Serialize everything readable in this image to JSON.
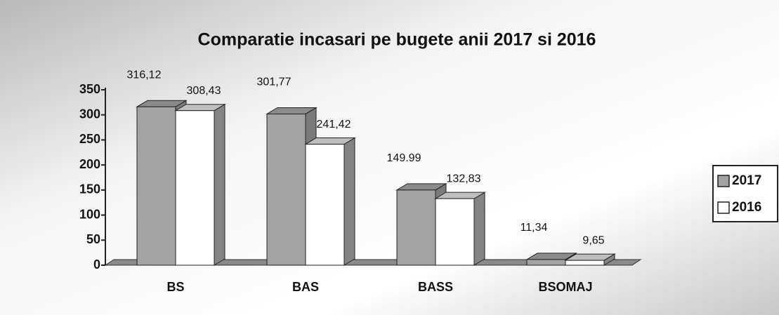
{
  "chart_data": {
    "type": "bar3d",
    "title": "Comparatie incasari pe bugete anii 2017 si 2016",
    "categories": [
      "BS",
      "BAS",
      "BASS",
      "BSOMAJ"
    ],
    "series": [
      {
        "name": "2017",
        "color": "#a3a3a3",
        "values": [
          316.12,
          301.77,
          149.99,
          11.34
        ],
        "value_labels": [
          "316,12",
          "301,77",
          "149.99",
          "11,34"
        ]
      },
      {
        "name": "2016",
        "color": "#ffffff",
        "values": [
          308.43,
          241.42,
          132.83,
          9.65
        ],
        "value_labels": [
          "308,43",
          "241,42",
          "132,83",
          "9,65"
        ]
      }
    ],
    "ylim": [
      0,
      350
    ],
    "yticks": [
      0,
      50,
      100,
      150,
      200,
      250,
      300,
      350
    ],
    "legend": "right"
  }
}
